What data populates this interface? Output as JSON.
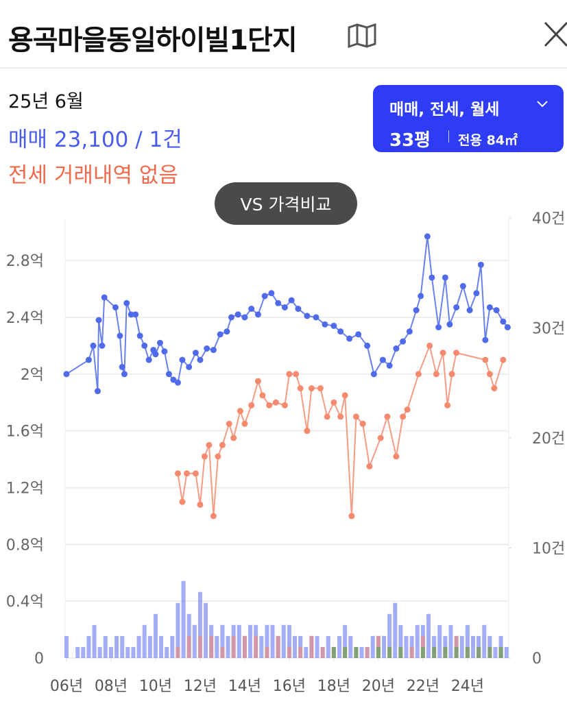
{
  "header": {
    "title": "용곡마을동일하이빌1단지"
  },
  "info": {
    "month": "25년 6월",
    "sale": "매매 23,100 / 1건",
    "jeonse": "전세 거래내역 없음"
  },
  "filter": {
    "label": "매매, 전세, 월세",
    "size": "33평",
    "area": "전용 84㎡"
  },
  "compare_button": "VS 가격비교",
  "chart_data": {
    "type": "line",
    "xlim": [
      2005.94,
      2025.85
    ],
    "xticks": [
      {
        "value": 2006,
        "label": "06년"
      },
      {
        "value": 2008,
        "label": "08년"
      },
      {
        "value": 2010,
        "label": "10년"
      },
      {
        "value": 2012,
        "label": "12년"
      },
      {
        "value": 2014,
        "label": "14년"
      },
      {
        "value": 2016,
        "label": "16년"
      },
      {
        "value": 2018,
        "label": "18년"
      },
      {
        "value": 2020,
        "label": "20년"
      },
      {
        "value": 2022,
        "label": "22년"
      },
      {
        "value": 2024,
        "label": "24년"
      }
    ],
    "ylim": [
      0,
      3.1
    ],
    "yticks": [
      0,
      {
        "value": 0.4,
        "label": "0.4억"
      },
      {
        "value": 0.8,
        "label": "0.8억"
      },
      {
        "value": 1.2,
        "label": "1.2억"
      },
      {
        "value": 1.6,
        "label": "1.6억"
      },
      {
        "value": 2,
        "label": "2억"
      },
      {
        "value": 2.4,
        "label": "2.4억"
      },
      {
        "value": 2.8,
        "label": "2.8억"
      }
    ],
    "y2lim": [
      0,
      40
    ],
    "y2ticks": [
      0,
      {
        "value": 10,
        "label": "10건"
      },
      {
        "value": 20,
        "label": "20건"
      },
      {
        "value": 30,
        "label": "30건"
      },
      {
        "value": 40,
        "label": "40건"
      }
    ],
    "grid": true,
    "series": [
      {
        "type": "line",
        "color": "#4f6bea",
        "x": [
          2006.0,
          2007.0,
          2007.2,
          2007.4,
          2007.45,
          2007.6,
          2007.7,
          2008.2,
          2008.4,
          2008.5,
          2008.6,
          2008.7,
          2008.9,
          2009.1,
          2009.3,
          2009.5,
          2009.7,
          2009.9,
          2010.0,
          2010.2,
          2010.4,
          2010.6,
          2010.8,
          2011.0,
          2011.2,
          2011.5,
          2011.8,
          2012.0,
          2012.3,
          2012.6,
          2012.9,
          2013.2,
          2013.4,
          2013.7,
          2014.0,
          2014.3,
          2014.6,
          2014.9,
          2015.2,
          2015.5,
          2015.8,
          2016.1,
          2016.4,
          2016.8,
          2017.2,
          2017.6,
          2018.0,
          2018.3,
          2018.7,
          2019.1,
          2019.5,
          2019.8,
          2020.2,
          2020.5,
          2020.8,
          2021.1,
          2021.4,
          2021.7,
          2021.9,
          2022.2,
          2022.4,
          2022.7,
          2023.0,
          2023.2,
          2023.5,
          2023.8,
          2024.1,
          2024.4,
          2024.6,
          2024.8,
          2025.0,
          2025.3,
          2025.6,
          2025.8
        ],
        "values": [
          2.0,
          2.1,
          2.2,
          1.88,
          2.38,
          2.2,
          2.54,
          2.47,
          2.27,
          2.05,
          2.0,
          2.5,
          2.42,
          2.42,
          2.27,
          2.2,
          2.1,
          2.17,
          2.14,
          2.22,
          2.16,
          2.0,
          1.96,
          1.94,
          2.1,
          2.05,
          2.15,
          2.1,
          2.18,
          2.17,
          2.28,
          2.3,
          2.4,
          2.42,
          2.4,
          2.46,
          2.42,
          2.55,
          2.57,
          2.5,
          2.47,
          2.52,
          2.46,
          2.41,
          2.4,
          2.35,
          2.34,
          2.3,
          2.25,
          2.28,
          2.2,
          2.0,
          2.1,
          2.06,
          2.18,
          2.23,
          2.3,
          2.45,
          2.55,
          2.97,
          2.68,
          2.33,
          2.68,
          2.35,
          2.47,
          2.62,
          2.45,
          2.57,
          2.77,
          2.24,
          2.47,
          2.45,
          2.37,
          2.33
        ]
      },
      {
        "type": "line",
        "color": "#f58a6e",
        "x": [
          2011.0,
          2011.2,
          2011.4,
          2011.8,
          2012.0,
          2012.2,
          2012.4,
          2012.6,
          2012.8,
          2013.0,
          2013.3,
          2013.5,
          2013.8,
          2014.0,
          2014.3,
          2014.6,
          2014.8,
          2015.1,
          2015.4,
          2015.8,
          2016.0,
          2016.3,
          2016.5,
          2016.8,
          2017.0,
          2017.4,
          2017.7,
          2018.0,
          2018.3,
          2018.5,
          2018.8,
          2019.0,
          2019.3,
          2019.6,
          2020.1,
          2020.4,
          2020.8,
          2021.1,
          2021.3,
          2021.8,
          2022.3,
          2022.6,
          2022.9,
          2023.1,
          2023.3,
          2023.5,
          2024.8,
          2025.0,
          2025.2,
          2025.6
        ],
        "values": [
          1.3,
          1.1,
          1.3,
          1.3,
          1.08,
          1.42,
          1.5,
          1.0,
          1.42,
          1.5,
          1.65,
          1.55,
          1.74,
          1.65,
          1.78,
          1.95,
          1.85,
          1.78,
          1.8,
          1.78,
          2.0,
          2.0,
          1.9,
          1.6,
          1.9,
          1.9,
          1.7,
          1.8,
          1.7,
          1.85,
          1.0,
          1.7,
          1.65,
          1.35,
          1.55,
          1.7,
          1.42,
          1.7,
          1.75,
          2.0,
          2.2,
          2.0,
          2.15,
          1.78,
          2.0,
          2.15,
          2.1,
          2.0,
          1.9,
          2.1
        ]
      },
      {
        "type": "bar",
        "axis": "y2",
        "color": "#5a6cf0",
        "x": [
          2006.0,
          2006.25,
          2006.5,
          2006.75,
          2007.0,
          2007.25,
          2007.5,
          2007.75,
          2008.0,
          2008.25,
          2008.5,
          2008.75,
          2009.0,
          2009.25,
          2009.5,
          2009.75,
          2010.0,
          2010.25,
          2010.5,
          2010.75,
          2011.0,
          2011.25,
          2011.5,
          2011.75,
          2012.0,
          2012.25,
          2012.5,
          2012.75,
          2013.0,
          2013.25,
          2013.5,
          2013.75,
          2014.0,
          2014.25,
          2014.5,
          2014.75,
          2015.0,
          2015.25,
          2015.5,
          2015.75,
          2016.0,
          2016.25,
          2016.5,
          2016.75,
          2017.0,
          2017.25,
          2017.5,
          2017.75,
          2018.0,
          2018.25,
          2018.5,
          2018.75,
          2019.0,
          2019.25,
          2019.5,
          2019.75,
          2020.0,
          2020.25,
          2020.5,
          2020.75,
          2021.0,
          2021.25,
          2021.5,
          2021.75,
          2022.0,
          2022.25,
          2022.5,
          2022.75,
          2023.0,
          2023.25,
          2023.5,
          2023.75,
          2024.0,
          2024.25,
          2024.5,
          2024.75,
          2025.0,
          2025.25,
          2025.5,
          2025.75
        ],
        "values": [
          2,
          0,
          1,
          1,
          2,
          3,
          1,
          2,
          1,
          2,
          2,
          1,
          1,
          2,
          3,
          2,
          4,
          2,
          1,
          2,
          5,
          7,
          4,
          3,
          6,
          5,
          3,
          2,
          3,
          2,
          3,
          3,
          2,
          3,
          3,
          2,
          3,
          3,
          2,
          3,
          3,
          2,
          2,
          1,
          2,
          2,
          1,
          2,
          1,
          2,
          3,
          2,
          1,
          1,
          1,
          2,
          2,
          2,
          4,
          5,
          3,
          2,
          2,
          3,
          3,
          4,
          2,
          3,
          2,
          3,
          2,
          2,
          3,
          2,
          2,
          3,
          2,
          1,
          2,
          1
        ]
      },
      {
        "type": "bar",
        "axis": "y2",
        "color": "#f7846a",
        "x": [
          2011.0,
          2011.5,
          2012.0,
          2012.5,
          2013.0,
          2013.5,
          2014.0,
          2014.5,
          2015.0,
          2015.5,
          2016.0,
          2016.5,
          2017.0,
          2017.5,
          2018.0,
          2018.5,
          2019.0,
          2019.5,
          2020.0,
          2020.5,
          2021.0,
          2021.5,
          2022.0,
          2022.5,
          2023.0,
          2023.5,
          2024.0,
          2024.5,
          2025.0,
          2025.5
        ],
        "values": [
          1,
          2,
          2,
          2,
          1,
          2,
          2,
          2,
          1,
          2,
          1,
          1,
          2,
          1,
          1,
          1,
          1,
          1,
          2,
          1,
          1,
          1,
          2,
          1,
          1,
          2,
          1,
          1,
          1,
          1
        ]
      },
      {
        "type": "bar",
        "axis": "y2",
        "color": "#3caa4a",
        "x": [
          2018.0,
          2018.5,
          2019.0,
          2019.5,
          2020.0,
          2020.5,
          2021.0,
          2021.5,
          2022.0,
          2022.5,
          2023.0,
          2023.5,
          2024.0,
          2024.5,
          2025.0,
          2025.5
        ],
        "values": [
          1,
          1,
          1,
          0,
          1,
          1,
          1,
          0,
          1,
          1,
          1,
          1,
          1,
          1,
          1,
          1
        ]
      }
    ]
  }
}
